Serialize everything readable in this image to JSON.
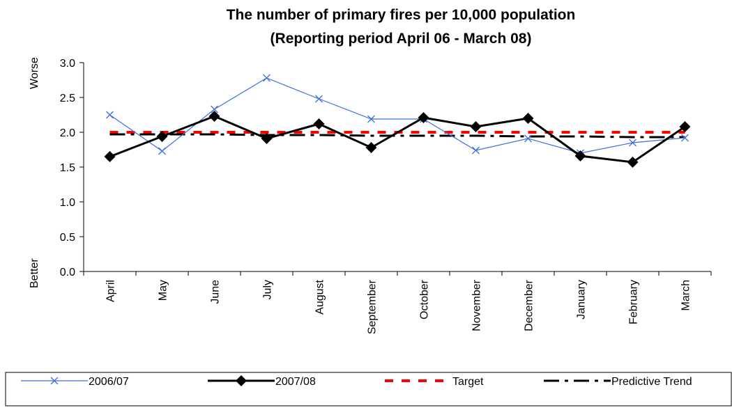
{
  "chart_data": {
    "type": "line",
    "title": "The number of primary fires per 10,000 population",
    "subtitle": "(Reporting period April 06 -  March 08)",
    "y_top_label": "Worse",
    "y_bottom_label": "Better",
    "categories": [
      "April",
      "May",
      "June",
      "July",
      "August",
      "September",
      "October",
      "November",
      "December",
      "January",
      "February",
      "March"
    ],
    "series": [
      {
        "name": "2006/07",
        "color": "#3c6ee0",
        "width": 1.2,
        "dash": "none",
        "marker": "x",
        "values": [
          2.25,
          1.73,
          2.33,
          2.78,
          2.48,
          2.19,
          2.19,
          1.74,
          1.91,
          1.7,
          1.85,
          1.92
        ]
      },
      {
        "name": "2007/08",
        "color": "#000000",
        "width": 3,
        "dash": "none",
        "marker": "diamond",
        "values": [
          1.65,
          1.94,
          2.23,
          1.91,
          2.12,
          1.78,
          2.21,
          2.08,
          2.2,
          1.66,
          1.57,
          2.08
        ]
      },
      {
        "name": "Target",
        "color": "#ff0000",
        "width": 4,
        "dash": "12 12",
        "marker": null,
        "values": [
          2.0,
          2.0,
          2.0,
          2.0,
          2.0,
          2.0,
          2.0,
          2.0,
          2.0,
          2.0,
          2.0,
          2.0
        ]
      },
      {
        "name": "Predictive Trend",
        "color": "#000000",
        "width": 3,
        "dash": "22 8 5 8",
        "marker": null,
        "values": [
          1.97,
          1.97,
          1.97,
          1.96,
          1.96,
          1.95,
          1.95,
          1.95,
          1.94,
          1.94,
          1.93,
          1.93
        ]
      }
    ],
    "ylim": [
      0,
      3
    ],
    "yticks": [
      {
        "value": 0,
        "label": "0.0"
      },
      0.5,
      {
        "value": 1,
        "label": "1.0"
      },
      1.5,
      {
        "value": 2,
        "label": "2.0"
      },
      2.5,
      {
        "value": 3,
        "label": "3.0"
      }
    ],
    "grid": false,
    "legend": "bottom"
  }
}
